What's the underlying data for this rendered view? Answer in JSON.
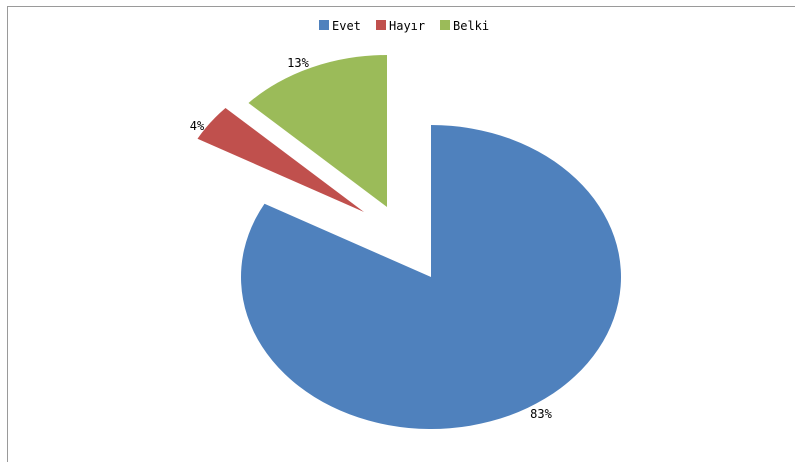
{
  "chart_data": {
    "type": "pie",
    "exploded": true,
    "legend_position": "top",
    "categories": [
      "Evet",
      "Hayır",
      "Belki"
    ],
    "values": [
      83,
      4,
      13
    ],
    "data_labels": [
      "83%",
      "4%",
      "13%"
    ],
    "colors": [
      "#4f81bd",
      "#c0504d",
      "#9bbb59"
    ]
  }
}
